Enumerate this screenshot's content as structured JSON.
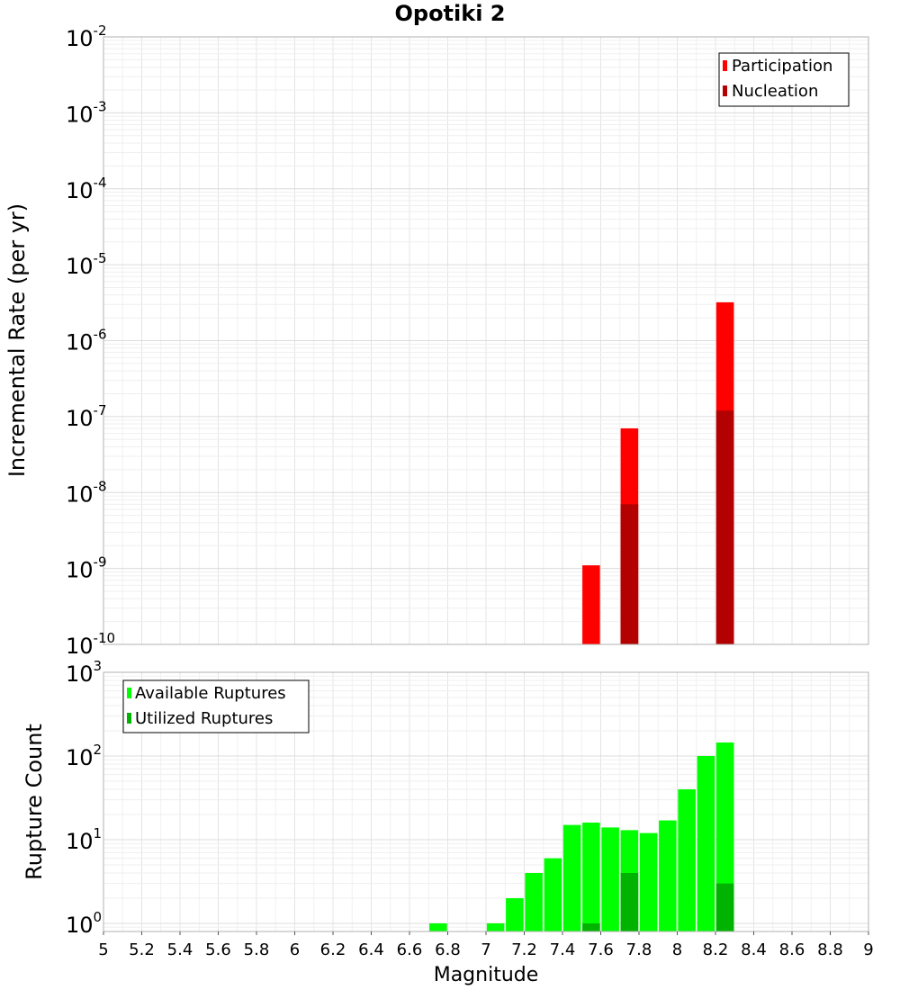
{
  "chart_data": [
    {
      "type": "bar",
      "title": "Opotiki 2",
      "xlabel": "",
      "ylabel": "Incremental Rate (per yr)",
      "yscale": "log",
      "xlim": [
        5,
        9
      ],
      "ylim": [
        1e-10,
        0.01
      ],
      "grid": true,
      "legend_position": "top-right",
      "ytick_labels": [
        {
          "base": "10",
          "exp": "-10",
          "value": 1e-10
        },
        {
          "base": "10",
          "exp": "-9",
          "value": 1e-09
        },
        {
          "base": "10",
          "exp": "-8",
          "value": 1e-08
        },
        {
          "base": "10",
          "exp": "-7",
          "value": 1e-07
        },
        {
          "base": "10",
          "exp": "-6",
          "value": 1e-06
        },
        {
          "base": "10",
          "exp": "-5",
          "value": 1e-05
        },
        {
          "base": "10",
          "exp": "-4",
          "value": 0.0001
        },
        {
          "base": "10",
          "exp": "-3",
          "value": 0.001
        },
        {
          "base": "10",
          "exp": "-2",
          "value": 0.01
        }
      ],
      "series": [
        {
          "name": "Participation",
          "color": "#ff0000",
          "points": [
            {
              "x": 7.55,
              "y": 1.1e-09
            },
            {
              "x": 7.75,
              "y": 7e-08
            },
            {
              "x": 8.25,
              "y": 3.2e-06
            }
          ]
        },
        {
          "name": "Nucleation",
          "color": "#b30000",
          "points": [
            {
              "x": 7.75,
              "y": 7e-09
            },
            {
              "x": 8.25,
              "y": 1.2e-07
            }
          ]
        }
      ]
    },
    {
      "type": "bar",
      "xlabel": "Magnitude",
      "ylabel": "Rupture Count",
      "yscale": "log",
      "xlim": [
        5,
        9
      ],
      "ylim": [
        0.8,
        1000
      ],
      "grid": true,
      "legend_position": "top-left",
      "xtick_labels": [
        "5",
        "5.2",
        "5.4",
        "5.6",
        "5.8",
        "6",
        "6.2",
        "6.4",
        "6.6",
        "6.8",
        "7",
        "7.2",
        "7.4",
        "7.6",
        "7.8",
        "8",
        "8.2",
        "8.4",
        "8.6",
        "8.8",
        "9"
      ],
      "ytick_labels": [
        {
          "base": "10",
          "exp": "0",
          "value": 1
        },
        {
          "base": "10",
          "exp": "1",
          "value": 10
        },
        {
          "base": "10",
          "exp": "2",
          "value": 100
        },
        {
          "base": "10",
          "exp": "3",
          "value": 1000
        }
      ],
      "series": [
        {
          "name": "Available Ruptures",
          "color": "#00ff00",
          "points": [
            {
              "x": 6.75,
              "y": 1
            },
            {
              "x": 7.05,
              "y": 1
            },
            {
              "x": 7.15,
              "y": 2
            },
            {
              "x": 7.25,
              "y": 4
            },
            {
              "x": 7.35,
              "y": 6
            },
            {
              "x": 7.45,
              "y": 15
            },
            {
              "x": 7.55,
              "y": 16
            },
            {
              "x": 7.65,
              "y": 14
            },
            {
              "x": 7.75,
              "y": 13
            },
            {
              "x": 7.85,
              "y": 12
            },
            {
              "x": 7.95,
              "y": 17
            },
            {
              "x": 8.05,
              "y": 40
            },
            {
              "x": 8.15,
              "y": 100
            },
            {
              "x": 8.25,
              "y": 145
            }
          ]
        },
        {
          "name": "Utilized Ruptures",
          "color": "#00b300",
          "points": [
            {
              "x": 7.55,
              "y": 1
            },
            {
              "x": 7.75,
              "y": 4
            },
            {
              "x": 8.25,
              "y": 3
            }
          ]
        }
      ]
    }
  ]
}
